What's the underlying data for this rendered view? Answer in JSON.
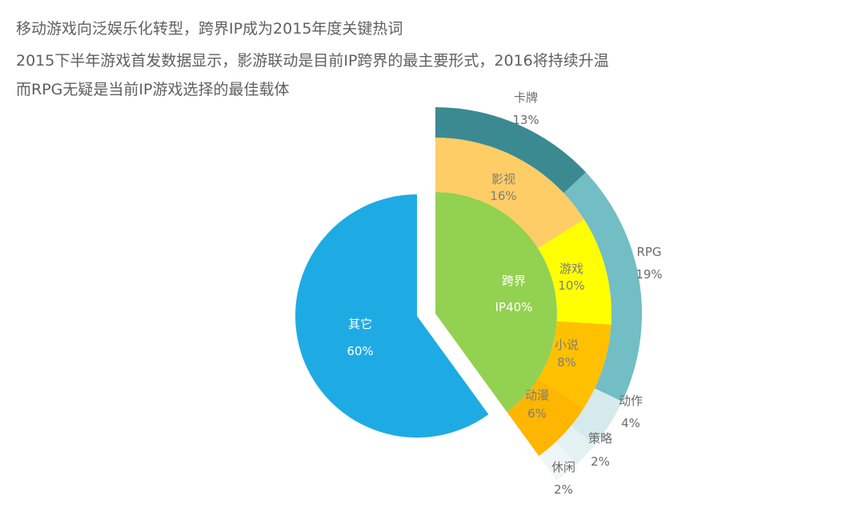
{
  "headlines": [
    "移动游戏向泛娱乐化转型，跨界IP成为2015年度关键热词",
    "2015下半年游戏首发数据显示，影游联动是目前IP跨界的最主要形式，2016将持续升温",
    "而RPG无疑是当前IP游戏选择的最佳载体"
  ],
  "chart_data": {
    "type": "pie",
    "unit": "%",
    "main": {
      "slices": [
        {
          "name": "其它",
          "value": 60,
          "color": "#1eabe3"
        },
        {
          "name": "跨界IP",
          "value": 40,
          "color": "#93d150"
        }
      ]
    },
    "ip_breakdown": {
      "parent": "跨界IP",
      "slices": [
        {
          "name": "影视",
          "value": 16,
          "color": "#ffcd66"
        },
        {
          "name": "游戏",
          "value": 10,
          "color": "#ffff00"
        },
        {
          "name": "小说",
          "value": 8,
          "color": "#ffc000"
        },
        {
          "name": "动漫",
          "value": 6,
          "color": "#ffb600"
        }
      ]
    },
    "genres": {
      "slices": [
        {
          "name": "卡牌",
          "value": 13,
          "color": "#3b8a91"
        },
        {
          "name": "RPG",
          "value": 19,
          "color": "#72bec4"
        },
        {
          "name": "动作",
          "value": 4,
          "color": "#d4eaec"
        },
        {
          "name": "策略",
          "value": 2,
          "color": "#e4f1f3"
        },
        {
          "name": "休闲",
          "value": 2,
          "color": "#eff6f7"
        }
      ]
    },
    "labels": {
      "others_name": "其它",
      "others_value": "60%",
      "ip_name": "跨界",
      "ip_value": "IP40%",
      "film_name": "影视",
      "film_value": "16%",
      "game_name": "游戏",
      "game_value": "10%",
      "novel_name": "小说",
      "novel_value": "8%",
      "anime_name": "动漫",
      "anime_value": "6%",
      "card_name": "卡牌",
      "card_value": "13%",
      "rpg_name": "RPG",
      "rpg_value": "19%",
      "action_name": "动作",
      "action_value": "4%",
      "strategy_name": "策略",
      "strategy_value": "2%",
      "casual_name": "休闲",
      "casual_value": "2%"
    }
  }
}
